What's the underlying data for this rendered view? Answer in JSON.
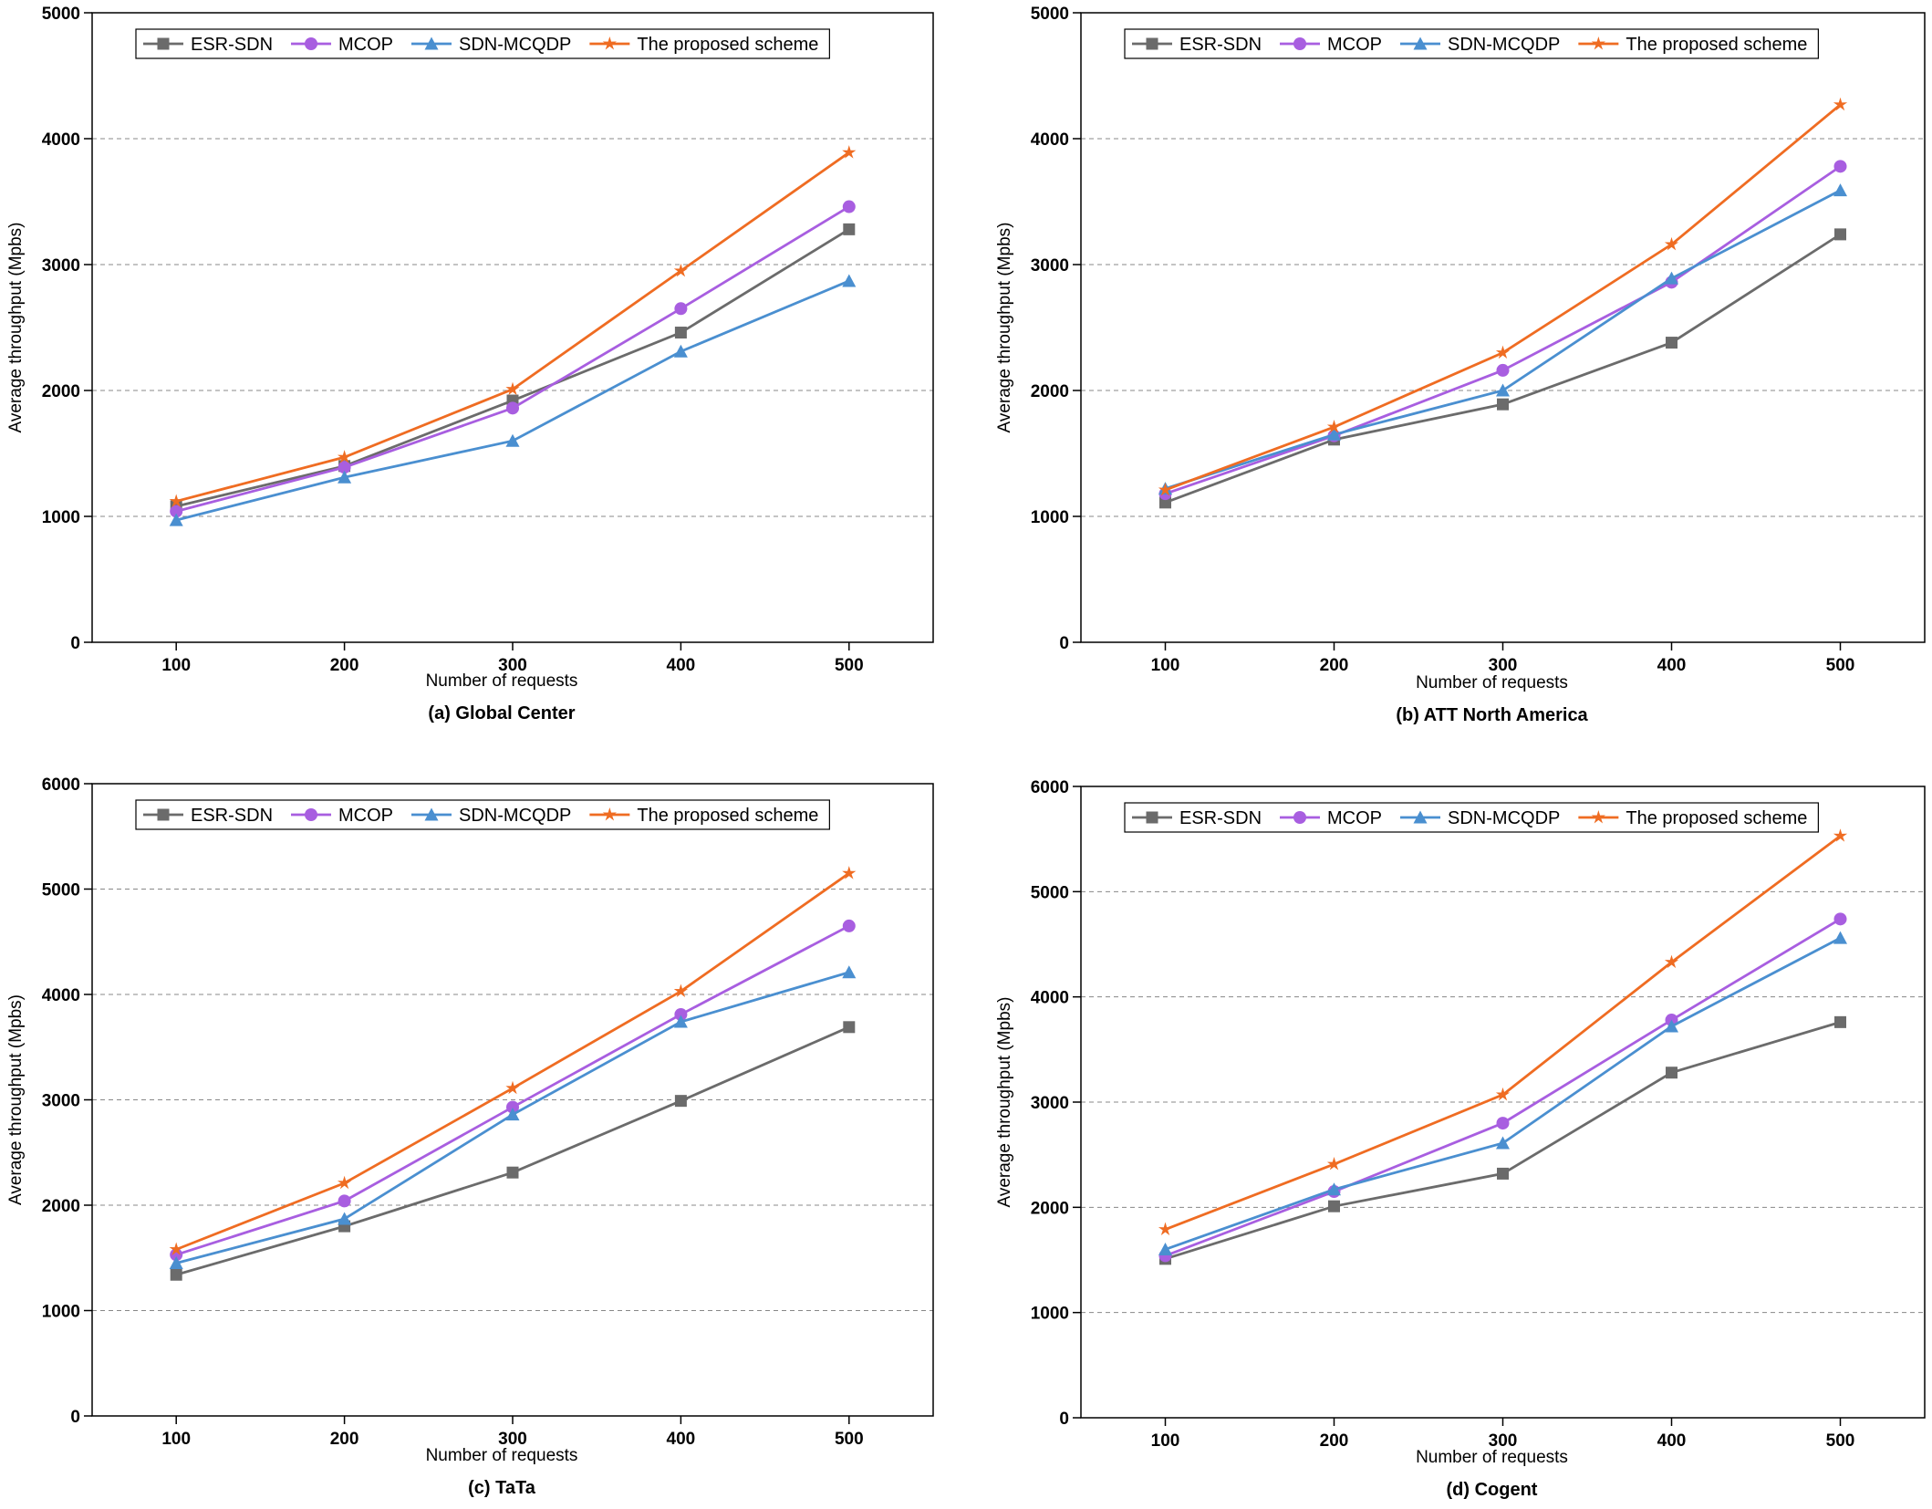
{
  "chart_data": [
    {
      "type": "line",
      "title": "(a) Global Center",
      "x_label": "Number of requests",
      "y_label": "Average throughput (Mpbs)",
      "x": [
        100,
        200,
        300,
        400,
        500
      ],
      "xlim": [
        50,
        550
      ],
      "xticks": [
        100,
        200,
        300,
        400,
        500
      ],
      "ylim": [
        0,
        5000
      ],
      "yticks": [
        0,
        1000,
        2000,
        3000,
        4000,
        5000
      ],
      "grid": true,
      "legend": "top",
      "series": [
        {
          "name": "ESR-SDN",
          "color": "#6b6b6b",
          "values": [
            1080,
            1400,
            1920,
            2460,
            3280
          ]
        },
        {
          "name": "MCOP",
          "color": "#a85ee0",
          "values": [
            1040,
            1390,
            1860,
            2650,
            3460
          ]
        },
        {
          "name": "SDN-MCQDP",
          "color": "#4a8fd0",
          "values": [
            970,
            1310,
            1600,
            2310,
            2870
          ]
        },
        {
          "name": "The proposed scheme",
          "color": "#ef6c22",
          "values": [
            1120,
            1470,
            2010,
            2950,
            3890
          ]
        }
      ]
    },
    {
      "type": "line",
      "title": "(b) ATT North America",
      "x_label": "Number of requests",
      "y_label": "Average throughput (Mpbs)",
      "x": [
        100,
        200,
        300,
        400,
        500
      ],
      "xlim": [
        50,
        550
      ],
      "xticks": [
        100,
        200,
        300,
        400,
        500
      ],
      "ylim": [
        0,
        5000
      ],
      "yticks": [
        0,
        1000,
        2000,
        3000,
        4000,
        5000
      ],
      "grid": true,
      "legend": "top",
      "series": [
        {
          "name": "ESR-SDN",
          "color": "#6b6b6b",
          "values": [
            1110,
            1610,
            1890,
            2380,
            3240
          ]
        },
        {
          "name": "MCOP",
          "color": "#a85ee0",
          "values": [
            1180,
            1640,
            2160,
            2860,
            3780
          ]
        },
        {
          "name": "SDN-MCQDP",
          "color": "#4a8fd0",
          "values": [
            1220,
            1650,
            2000,
            2890,
            3590
          ]
        },
        {
          "name": "The proposed scheme",
          "color": "#ef6c22",
          "values": [
            1210,
            1710,
            2300,
            3160,
            4270
          ]
        }
      ]
    },
    {
      "type": "line",
      "title": "(c) TaTa",
      "x_label": "Number of requests",
      "y_label": "Average throughput (Mpbs)",
      "x": [
        100,
        200,
        300,
        400,
        500
      ],
      "xlim": [
        50,
        550
      ],
      "xticks": [
        100,
        200,
        300,
        400,
        500
      ],
      "ylim": [
        0,
        6000
      ],
      "yticks": [
        0,
        1000,
        2000,
        3000,
        4000,
        5000,
        6000
      ],
      "grid": true,
      "legend": "top",
      "series": [
        {
          "name": "ESR-SDN",
          "color": "#6b6b6b",
          "values": [
            1340,
            1800,
            2310,
            2990,
            3690
          ]
        },
        {
          "name": "MCOP",
          "color": "#a85ee0",
          "values": [
            1530,
            2040,
            2930,
            3810,
            4650
          ]
        },
        {
          "name": "SDN-MCQDP",
          "color": "#4a8fd0",
          "values": [
            1450,
            1870,
            2860,
            3740,
            4210
          ]
        },
        {
          "name": "The proposed scheme",
          "color": "#ef6c22",
          "values": [
            1580,
            2210,
            3110,
            4030,
            5150
          ]
        }
      ]
    },
    {
      "type": "line",
      "title": "(d) Cogent",
      "x_label": "Number of requests",
      "y_label": "Average throughput (Mpbs)",
      "x": [
        100,
        200,
        300,
        400,
        500
      ],
      "xlim": [
        50,
        550
      ],
      "xticks": [
        100,
        200,
        300,
        400,
        500
      ],
      "ylim": [
        0,
        6000
      ],
      "yticks": [
        0,
        1000,
        2000,
        3000,
        4000,
        5000,
        6000
      ],
      "grid": true,
      "legend": "top",
      "series": [
        {
          "name": "ESR-SDN",
          "color": "#6b6b6b",
          "values": [
            1510,
            2010,
            2320,
            3280,
            3760
          ]
        },
        {
          "name": "MCOP",
          "color": "#a85ee0",
          "values": [
            1540,
            2150,
            2800,
            3780,
            4740
          ]
        },
        {
          "name": "SDN-MCQDP",
          "color": "#4a8fd0",
          "values": [
            1600,
            2170,
            2610,
            3720,
            4560
          ]
        },
        {
          "name": "The proposed scheme",
          "color": "#ef6c22",
          "values": [
            1790,
            2410,
            3070,
            4330,
            5530
          ]
        }
      ]
    }
  ]
}
